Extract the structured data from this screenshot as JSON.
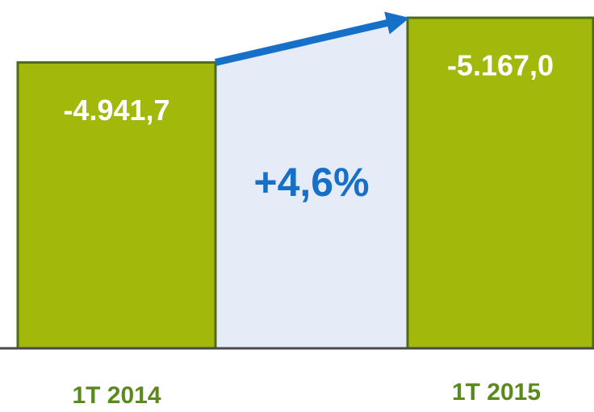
{
  "chart_data": {
    "type": "bar",
    "categories": [
      "1T 2014",
      "1T 2015"
    ],
    "values": [
      -4941.7,
      -5167.0
    ],
    "value_labels": [
      "-4.941,7",
      "-5.167,0"
    ],
    "annotation": "+4,6%",
    "color": "#a2b80b",
    "ylim": [
      -3500,
      -5200
    ]
  }
}
